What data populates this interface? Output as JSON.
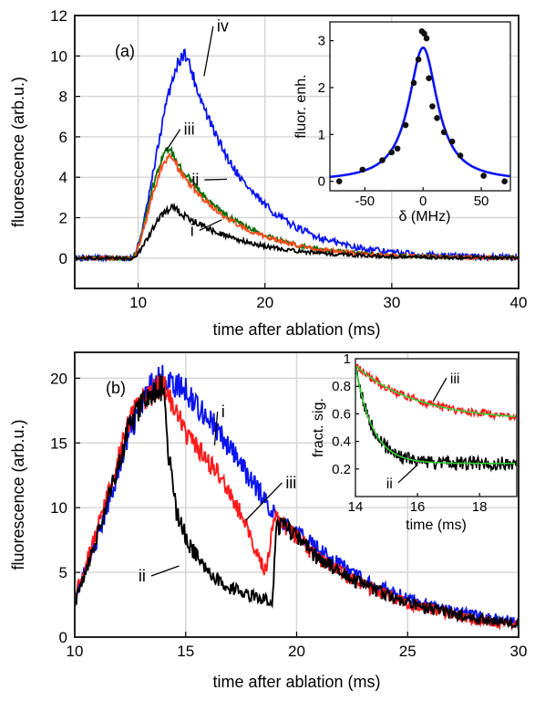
{
  "chart_data": [
    {
      "panel": "(a)",
      "type": "line",
      "xlabel": "time after ablation (ms)",
      "ylabel": "fluorescence (arb.u.)",
      "xlim": [
        5,
        40
      ],
      "ylim": [
        -1.5,
        12
      ],
      "xticks": [
        10,
        20,
        30,
        40
      ],
      "yticks": [
        0,
        2,
        4,
        6,
        8,
        10,
        12
      ],
      "grid": true,
      "series": [
        {
          "label": "iv",
          "color": "#0a14f0",
          "t0": 5,
          "peak": 10.1,
          "tpeak": 13.8,
          "rise": 1.0,
          "decay": 4.6,
          "noise": 0.22,
          "label_pos": [
            16.2,
            11.2
          ],
          "pointer": [
            15.2,
            9.0
          ]
        },
        {
          "label": "iii",
          "color": "#0a6e0a",
          "t0": 5,
          "peak": 5.4,
          "tpeak": 12.5,
          "rise": 1.0,
          "decay": 4.8,
          "noise": 0.13,
          "label_pos": [
            13.6,
            6.1
          ],
          "pointer": [
            12.2,
            5.3
          ]
        },
        {
          "label": "ii",
          "color": "#ff4a1a",
          "t0": 5,
          "peak": 5.0,
          "tpeak": 12.6,
          "rise": 1.0,
          "decay": 4.8,
          "noise": 0.13,
          "label_pos": [
            14.8,
            3.6
          ],
          "pointer": [
            17.0,
            3.9
          ]
        },
        {
          "label": "i",
          "color": "#000000",
          "t0": 5,
          "peak": 2.5,
          "tpeak": 12.8,
          "rise": 1.0,
          "decay": 5.0,
          "noise": 0.12,
          "label_pos": [
            14.4,
            1.1
          ],
          "pointer": [
            16.6,
            1.9
          ]
        }
      ],
      "inset": {
        "type": "scatter",
        "xlabel": "δ (MHz)",
        "ylabel": "fluor. enh.",
        "xlim": [
          -80,
          75
        ],
        "ylim": [
          -0.2,
          3.4
        ],
        "xticks": [
          -50,
          0,
          50
        ],
        "yticks": [
          0,
          1,
          2,
          3
        ],
        "fit": {
          "type": "lorentzian",
          "amplitude": 2.85,
          "fwhm": 30,
          "color": "#0a14f0"
        },
        "points": [
          {
            "x": -72,
            "y": 0.0
          },
          {
            "x": -52,
            "y": 0.25
          },
          {
            "x": -35,
            "y": 0.45
          },
          {
            "x": -27,
            "y": 0.62
          },
          {
            "x": -22,
            "y": 0.7
          },
          {
            "x": -15,
            "y": 1.2
          },
          {
            "x": -8,
            "y": 2.1
          },
          {
            "x": -4,
            "y": 2.6
          },
          {
            "x": -1,
            "y": 3.2
          },
          {
            "x": 1,
            "y": 3.15
          },
          {
            "x": 3,
            "y": 3.05
          },
          {
            "x": 5,
            "y": 2.2
          },
          {
            "x": 8,
            "y": 1.6
          },
          {
            "x": 12,
            "y": 1.35
          },
          {
            "x": 18,
            "y": 1.05
          },
          {
            "x": 25,
            "y": 0.85
          },
          {
            "x": 32,
            "y": 0.55
          },
          {
            "x": 52,
            "y": 0.12
          },
          {
            "x": 70,
            "y": 0.0
          }
        ]
      }
    },
    {
      "panel": "(b)",
      "type": "line",
      "xlabel": "time after ablation (ms)",
      "ylabel": "fluorescence (arb.u.)",
      "xlim": [
        10,
        30
      ],
      "ylim": [
        0,
        22
      ],
      "xticks": [
        10,
        15,
        20,
        25,
        30
      ],
      "yticks": [
        0,
        5,
        10,
        15,
        20
      ],
      "grid": true,
      "series": [
        {
          "label": "i",
          "color": "#0a14f0",
          "label_pos": [
            16.6,
            17.0
          ],
          "pointer": [
            16.3,
            14.8
          ],
          "points": [
            [
              10,
              3.0
            ],
            [
              11.2,
              8.5
            ],
            [
              12.5,
              16.0
            ],
            [
              13.5,
              19.5
            ],
            [
              14,
              20.0
            ],
            [
              15,
              19.0
            ],
            [
              16,
              17.0
            ],
            [
              17,
              14.5
            ],
            [
              18,
              12.0
            ],
            [
              19,
              9.5
            ],
            [
              19.2,
              9.0
            ],
            [
              19.5,
              8.7
            ],
            [
              21,
              6.8
            ],
            [
              23,
              4.4
            ],
            [
              25,
              3.0
            ],
            [
              27,
              2.0
            ],
            [
              29,
              1.4
            ],
            [
              30,
              1.2
            ]
          ]
        },
        {
          "label": "iii",
          "color": "#ff1a1a",
          "label_pos": [
            19.5,
            11.5
          ],
          "pointer": [
            17.7,
            9.0
          ],
          "points": [
            [
              10,
              3.2
            ],
            [
              11.2,
              9.2
            ],
            [
              12.5,
              17.0
            ],
            [
              13.5,
              19.0
            ],
            [
              14,
              19.6
            ],
            [
              14.6,
              17.0
            ],
            [
              15.5,
              14.5
            ],
            [
              16.5,
              12.5
            ],
            [
              17.5,
              9.5
            ],
            [
              18.6,
              5.0
            ],
            [
              19.0,
              9.5
            ],
            [
              19.5,
              8.6
            ],
            [
              21,
              6.0
            ],
            [
              23,
              4.0
            ],
            [
              25,
              2.6
            ],
            [
              27,
              1.7
            ],
            [
              29,
              1.1
            ],
            [
              30,
              0.9
            ]
          ]
        },
        {
          "label": "ii",
          "color": "#000000",
          "label_pos": [
            13.2,
            4.3
          ],
          "pointer": [
            14.7,
            5.5
          ],
          "points": [
            [
              10,
              2.6
            ],
            [
              11.2,
              8.8
            ],
            [
              12.5,
              16.5
            ],
            [
              13.5,
              19.0
            ],
            [
              14,
              19.4
            ],
            [
              14.2,
              14.5
            ],
            [
              14.6,
              9.5
            ],
            [
              15.2,
              7.0
            ],
            [
              16,
              5.0
            ],
            [
              17,
              3.8
            ],
            [
              18,
              3.2
            ],
            [
              18.9,
              2.8
            ],
            [
              19.1,
              8.5
            ],
            [
              19.5,
              8.6
            ],
            [
              21,
              6.0
            ],
            [
              23,
              4.0
            ],
            [
              25,
              2.6
            ],
            [
              27,
              1.8
            ],
            [
              29,
              1.2
            ],
            [
              30,
              1.0
            ]
          ]
        }
      ],
      "inset": {
        "type": "line",
        "xlabel": "time (ms)",
        "ylabel": "fract. sig.",
        "xlim": [
          14,
          19.2
        ],
        "ylim": [
          0,
          1
        ],
        "xticks": [
          14,
          16,
          18
        ],
        "yticks": [
          0.2,
          0.4,
          0.6,
          0.8,
          1
        ],
        "series": [
          {
            "label": "iii",
            "color": "#ff1a1a",
            "start": 0.95,
            "end": 0.55,
            "tau": 2.0,
            "noise": 0.025,
            "fit": {
              "color": "#33cc33"
            },
            "label_pos": [
              17.05,
              0.82
            ],
            "pointer": [
              16.5,
              0.69
            ]
          },
          {
            "label": "ii",
            "color": "#000000",
            "start": 0.95,
            "end": 0.24,
            "tau": 0.55,
            "noise": 0.04,
            "fit": {
              "color": "#33cc33"
            },
            "label_pos": [
              15.2,
              0.06
            ],
            "pointer": [
              16.0,
              0.23
            ]
          }
        ]
      }
    }
  ]
}
